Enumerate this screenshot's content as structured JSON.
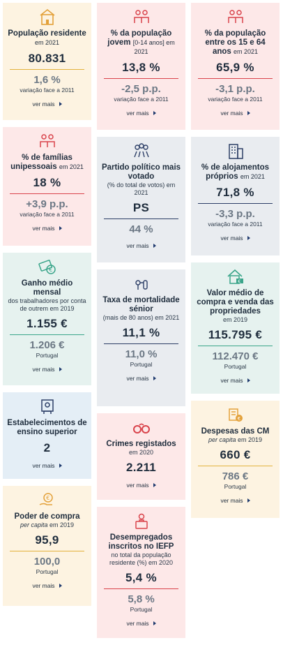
{
  "cards": {
    "pop_res": {
      "title": "População residente",
      "sub": "em 2021",
      "value": "80.831",
      "value2": "1,6 %",
      "cap": "variação face a 2011",
      "more": "ver mais"
    },
    "pop_jovem": {
      "title": "% da população jovem",
      "sub": "[0-14 anos] em 2021",
      "value": "13,8 %",
      "value2": "-2,5 p.p.",
      "cap": "variação face a 2011",
      "more": "ver mais"
    },
    "pop_1564": {
      "title": "% da população entre os 15 e 64 anos",
      "sub": "em 2021",
      "value": "65,9 %",
      "value2": "-3,1 p.p.",
      "cap": "variação face a 2011",
      "more": "ver mais"
    },
    "fam_uni": {
      "title": "% de famílias unipessoais",
      "sub": "em 2021",
      "value": "18 %",
      "value2": "+3,9 p.p.",
      "cap": "variação face a 2011",
      "more": "ver mais"
    },
    "partido": {
      "title": "Partido político mais votado",
      "desc": "(% do total de votos) em 2021",
      "value": "PS",
      "value2": "44 %",
      "more": "ver mais"
    },
    "aloj": {
      "title": "% de alojamentos próprios",
      "sub": "em 2021",
      "value": "71,8 %",
      "value2": "-3,3 p.p.",
      "cap": "variação face a 2011",
      "more": "ver mais"
    },
    "ganho": {
      "title": "Ganho médio mensal",
      "desc": "dos trabalhadores por conta de outrem em 2019",
      "value": "1.155 €",
      "value2": "1.206 €",
      "cap": "Portugal",
      "more": "ver mais"
    },
    "mort": {
      "title": "Taxa de mortalidade sénior",
      "desc": "(mais de 80 anos) em 2021",
      "value": "11,1 %",
      "value2": "11,0 %",
      "cap": "Portugal",
      "more": "ver mais"
    },
    "valor_med": {
      "title": "Valor médio de compra e venda das propriedades",
      "desc": "em 2019",
      "value": "115.795 €",
      "value2": "112.470 €",
      "cap": "Portugal",
      "more": "ver mais"
    },
    "estab": {
      "title": "Estabelecimentos de ensino superior",
      "value": "2",
      "more": "ver mais"
    },
    "crimes": {
      "title": "Crimes registados",
      "desc": "em 2020",
      "value": "2.211",
      "more": "ver mais"
    },
    "despesas": {
      "title": "Despesas das CM",
      "desc_i": "per capita",
      "desc": "em 2019",
      "value": "660 €",
      "value2": "786 €",
      "cap": "Portugal",
      "more": "ver mais"
    },
    "poder": {
      "title": "Poder de compra",
      "desc_i": "per capita",
      "desc": "em 2019",
      "value": "95,9",
      "value2": "100,0",
      "cap": "Portugal",
      "more": "ver mais"
    },
    "desemp": {
      "title": "Desempregados inscritos no IEFP",
      "desc": "no total da população residente (%) em 2020",
      "value": "5,4 %",
      "value2": "5,8 %",
      "cap": "Portugal",
      "more": "ver mais"
    }
  },
  "icons": [
    "house-icon",
    "family-icon",
    "people-icon",
    "voting-icon",
    "building-icon",
    "money-icon",
    "mortality-icon",
    "house-price-icon",
    "school-icon",
    "handcuffs-icon",
    "coins-icon",
    "purchase-icon",
    "unemployed-icon"
  ],
  "colors": {
    "yellow": "#fdf3e1",
    "pink": "#fde8e8",
    "grey": "#e9ecf0",
    "blue": "#e4eef6",
    "green": "#e6f2ef",
    "red": "#d9434b",
    "navy": "#2c3e66",
    "teal": "#3aa58a",
    "gold": "#e3b23c"
  }
}
